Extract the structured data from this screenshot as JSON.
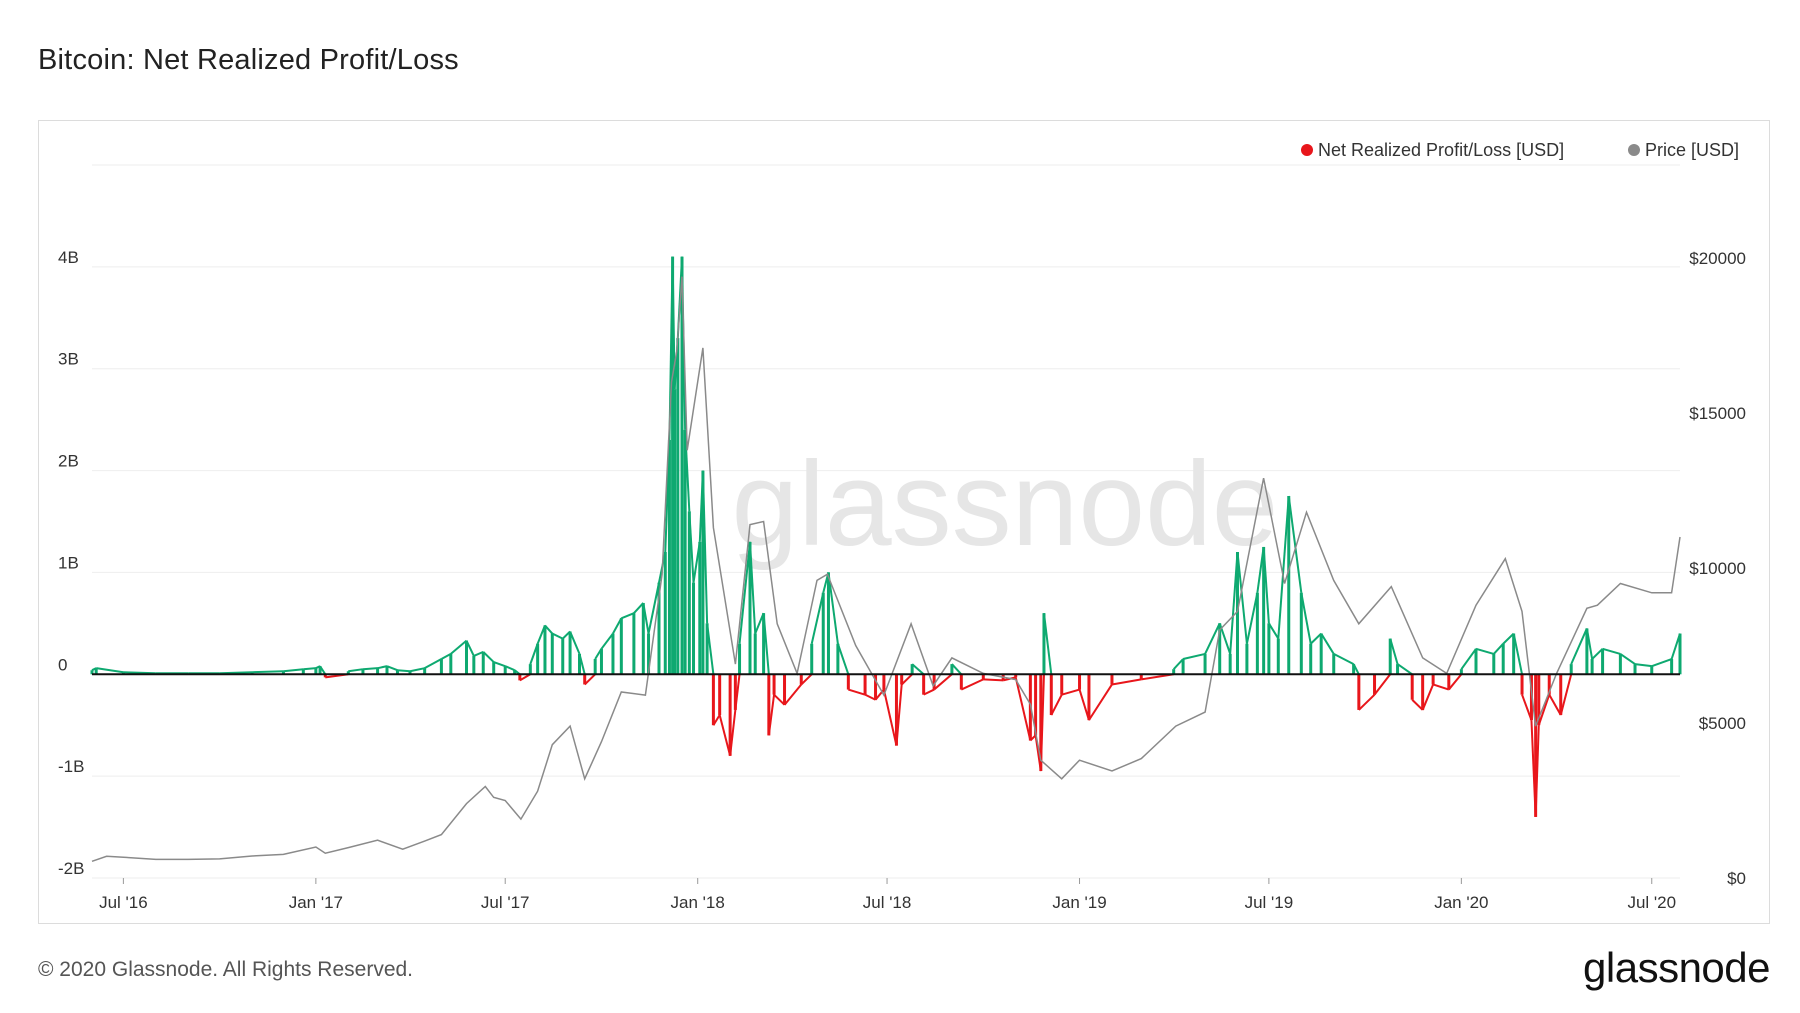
{
  "page": {
    "title": "Bitcoin: Net Realized Profit/Loss",
    "copyright": "© 2020 Glassnode. All Rights Reserved.",
    "logo": "glassnode",
    "watermark": "glassnode"
  },
  "colors": {
    "profit": "#0ea970",
    "loss": "#e8161b",
    "price": "#8a8a8a",
    "zero_line": "#111111",
    "grid": "#eeeeee"
  },
  "chart_data": {
    "type": "area",
    "title": "Bitcoin: Net Realized Profit/Loss",
    "legend_position": "top-right",
    "legend": [
      "Net Realized Profit/Loss [USD]",
      "Price [USD]"
    ],
    "grid": true,
    "x_ticks": [
      "Jul '16",
      "Jan '17",
      "Jul '17",
      "Jan '18",
      "Jul '18",
      "Jan '19",
      "Jul '19",
      "Jan '20",
      "Jul '20"
    ],
    "x_range": [
      "2016-06-01",
      "2020-07-28"
    ],
    "y_left": {
      "ticks": [
        "4B",
        "3B",
        "2B",
        "1B",
        "0",
        "-1B",
        "-2B"
      ],
      "tick_values": [
        4000000000,
        3000000000,
        2000000000,
        1000000000,
        0,
        -1000000000,
        -2000000000
      ],
      "range": [
        -2000000000,
        5000000000
      ]
    },
    "y_right": {
      "ticks": [
        "$20000",
        "$15000",
        "$10000",
        "$5000",
        "$0"
      ],
      "tick_values": [
        20000,
        15000,
        10000,
        5000,
        0
      ],
      "range": [
        0,
        23000
      ]
    },
    "series": [
      {
        "name": "Net Realized Profit/Loss [USD]",
        "axis": "left",
        "unit": "USD",
        "points": [
          [
            "2016-06-01",
            40000000
          ],
          [
            "2016-06-05",
            60000000
          ],
          [
            "2016-07-01",
            20000000
          ],
          [
            "2016-08-01",
            10000000
          ],
          [
            "2016-09-01",
            10000000
          ],
          [
            "2016-10-01",
            10000000
          ],
          [
            "2016-11-01",
            20000000
          ],
          [
            "2016-12-01",
            30000000
          ],
          [
            "2016-12-20",
            50000000
          ],
          [
            "2017-01-01",
            60000000
          ],
          [
            "2017-01-05",
            80000000
          ],
          [
            "2017-01-10",
            -30000000
          ],
          [
            "2017-02-01",
            30000000
          ],
          [
            "2017-02-15",
            50000000
          ],
          [
            "2017-03-01",
            60000000
          ],
          [
            "2017-03-10",
            80000000
          ],
          [
            "2017-03-20",
            40000000
          ],
          [
            "2017-04-01",
            30000000
          ],
          [
            "2017-04-15",
            60000000
          ],
          [
            "2017-05-01",
            150000000
          ],
          [
            "2017-05-10",
            200000000
          ],
          [
            "2017-05-25",
            330000000
          ],
          [
            "2017-06-01",
            180000000
          ],
          [
            "2017-06-10",
            220000000
          ],
          [
            "2017-06-20",
            120000000
          ],
          [
            "2017-07-01",
            80000000
          ],
          [
            "2017-07-10",
            40000000
          ],
          [
            "2017-07-15",
            -60000000
          ],
          [
            "2017-07-25",
            100000000
          ],
          [
            "2017-08-01",
            300000000
          ],
          [
            "2017-08-08",
            480000000
          ],
          [
            "2017-08-15",
            400000000
          ],
          [
            "2017-08-25",
            350000000
          ],
          [
            "2017-09-01",
            420000000
          ],
          [
            "2017-09-10",
            200000000
          ],
          [
            "2017-09-15",
            -100000000
          ],
          [
            "2017-09-25",
            150000000
          ],
          [
            "2017-10-01",
            250000000
          ],
          [
            "2017-10-12",
            400000000
          ],
          [
            "2017-10-20",
            550000000
          ],
          [
            "2017-11-01",
            600000000
          ],
          [
            "2017-11-10",
            700000000
          ],
          [
            "2017-11-15",
            400000000
          ],
          [
            "2017-11-25",
            900000000
          ],
          [
            "2017-12-01",
            1200000000
          ],
          [
            "2017-12-05",
            2300000000
          ],
          [
            "2017-12-08",
            4100000000
          ],
          [
            "2017-12-10",
            2800000000
          ],
          [
            "2017-12-13",
            3300000000
          ],
          [
            "2017-12-17",
            4100000000
          ],
          [
            "2017-12-20",
            2400000000
          ],
          [
            "2017-12-24",
            1600000000
          ],
          [
            "2017-12-28",
            900000000
          ],
          [
            "2018-01-03",
            1300000000
          ],
          [
            "2018-01-06",
            2000000000
          ],
          [
            "2018-01-10",
            500000000
          ],
          [
            "2018-01-16",
            -500000000
          ],
          [
            "2018-01-22",
            -400000000
          ],
          [
            "2018-02-01",
            -800000000
          ],
          [
            "2018-02-06",
            -350000000
          ],
          [
            "2018-02-10",
            300000000
          ],
          [
            "2018-02-20",
            1300000000
          ],
          [
            "2018-02-25",
            400000000
          ],
          [
            "2018-03-05",
            600000000
          ],
          [
            "2018-03-10",
            -600000000
          ],
          [
            "2018-03-15",
            -200000000
          ],
          [
            "2018-03-25",
            -300000000
          ],
          [
            "2018-04-10",
            -100000000
          ],
          [
            "2018-04-20",
            300000000
          ],
          [
            "2018-05-01",
            800000000
          ],
          [
            "2018-05-06",
            1000000000
          ],
          [
            "2018-05-15",
            300000000
          ],
          [
            "2018-05-25",
            -150000000
          ],
          [
            "2018-06-10",
            -200000000
          ],
          [
            "2018-06-20",
            -250000000
          ],
          [
            "2018-06-28",
            -150000000
          ],
          [
            "2018-07-10",
            -700000000
          ],
          [
            "2018-07-15",
            -100000000
          ],
          [
            "2018-07-25",
            100000000
          ],
          [
            "2018-08-05",
            -200000000
          ],
          [
            "2018-08-15",
            -150000000
          ],
          [
            "2018-09-01",
            100000000
          ],
          [
            "2018-09-10",
            -150000000
          ],
          [
            "2018-10-01",
            -50000000
          ],
          [
            "2018-10-20",
            -60000000
          ],
          [
            "2018-11-01",
            -30000000
          ],
          [
            "2018-11-15",
            -650000000
          ],
          [
            "2018-11-20",
            -600000000
          ],
          [
            "2018-11-25",
            -950000000
          ],
          [
            "2018-11-28",
            600000000
          ],
          [
            "2018-12-05",
            -400000000
          ],
          [
            "2018-12-15",
            -200000000
          ],
          [
            "2019-01-01",
            -150000000
          ],
          [
            "2019-01-10",
            -450000000
          ],
          [
            "2019-02-01",
            -100000000
          ],
          [
            "2019-03-01",
            -50000000
          ],
          [
            "2019-04-01",
            50000000
          ],
          [
            "2019-04-10",
            150000000
          ],
          [
            "2019-05-01",
            200000000
          ],
          [
            "2019-05-15",
            500000000
          ],
          [
            "2019-05-25",
            200000000
          ],
          [
            "2019-06-01",
            1200000000
          ],
          [
            "2019-06-10",
            300000000
          ],
          [
            "2019-06-20",
            800000000
          ],
          [
            "2019-06-26",
            1250000000
          ],
          [
            "2019-07-01",
            500000000
          ],
          [
            "2019-07-10",
            350000000
          ],
          [
            "2019-07-20",
            1750000000
          ],
          [
            "2019-08-01",
            800000000
          ],
          [
            "2019-08-10",
            300000000
          ],
          [
            "2019-08-20",
            400000000
          ],
          [
            "2019-09-01",
            200000000
          ],
          [
            "2019-09-20",
            100000000
          ],
          [
            "2019-09-25",
            -350000000
          ],
          [
            "2019-10-10",
            -200000000
          ],
          [
            "2019-10-25",
            350000000
          ],
          [
            "2019-11-01",
            100000000
          ],
          [
            "2019-11-15",
            -250000000
          ],
          [
            "2019-11-25",
            -350000000
          ],
          [
            "2019-12-05",
            -100000000
          ],
          [
            "2019-12-20",
            -150000000
          ],
          [
            "2020-01-01",
            50000000
          ],
          [
            "2020-01-15",
            250000000
          ],
          [
            "2020-02-01",
            200000000
          ],
          [
            "2020-02-10",
            300000000
          ],
          [
            "2020-02-20",
            400000000
          ],
          [
            "2020-02-28",
            -200000000
          ],
          [
            "2020-03-08",
            -450000000
          ],
          [
            "2020-03-12",
            -1400000000
          ],
          [
            "2020-03-15",
            -500000000
          ],
          [
            "2020-03-25",
            -200000000
          ],
          [
            "2020-04-05",
            -400000000
          ],
          [
            "2020-04-15",
            100000000
          ],
          [
            "2020-04-30",
            450000000
          ],
          [
            "2020-05-05",
            150000000
          ],
          [
            "2020-05-15",
            250000000
          ],
          [
            "2020-06-01",
            200000000
          ],
          [
            "2020-06-15",
            100000000
          ],
          [
            "2020-07-01",
            80000000
          ],
          [
            "2020-07-20",
            150000000
          ],
          [
            "2020-07-28",
            400000000
          ]
        ]
      },
      {
        "name": "Price [USD]",
        "axis": "right",
        "unit": "USD",
        "points": [
          [
            "2016-06-01",
            540
          ],
          [
            "2016-06-15",
            700
          ],
          [
            "2016-07-01",
            670
          ],
          [
            "2016-08-01",
            600
          ],
          [
            "2016-09-01",
            600
          ],
          [
            "2016-10-01",
            615
          ],
          [
            "2016-11-01",
            710
          ],
          [
            "2016-12-01",
            760
          ],
          [
            "2017-01-01",
            1000
          ],
          [
            "2017-01-10",
            800
          ],
          [
            "2017-02-01",
            980
          ],
          [
            "2017-03-01",
            1220
          ],
          [
            "2017-03-25",
            930
          ],
          [
            "2017-04-15",
            1190
          ],
          [
            "2017-05-01",
            1400
          ],
          [
            "2017-05-25",
            2400
          ],
          [
            "2017-06-12",
            2950
          ],
          [
            "2017-06-20",
            2600
          ],
          [
            "2017-07-01",
            2500
          ],
          [
            "2017-07-16",
            1900
          ],
          [
            "2017-08-01",
            2800
          ],
          [
            "2017-08-15",
            4300
          ],
          [
            "2017-09-01",
            4900
          ],
          [
            "2017-09-15",
            3200
          ],
          [
            "2017-10-01",
            4400
          ],
          [
            "2017-10-20",
            6000
          ],
          [
            "2017-11-12",
            5900
          ],
          [
            "2017-11-28",
            9800
          ],
          [
            "2017-12-07",
            16000
          ],
          [
            "2017-12-12",
            17000
          ],
          [
            "2017-12-17",
            19400
          ],
          [
            "2017-12-22",
            13800
          ],
          [
            "2018-01-06",
            17100
          ],
          [
            "2018-01-16",
            11300
          ],
          [
            "2018-02-06",
            6900
          ],
          [
            "2018-02-20",
            11400
          ],
          [
            "2018-03-05",
            11500
          ],
          [
            "2018-03-18",
            8200
          ],
          [
            "2018-04-06",
            6600
          ],
          [
            "2018-04-25",
            9600
          ],
          [
            "2018-05-05",
            9800
          ],
          [
            "2018-06-01",
            7500
          ],
          [
            "2018-06-28",
            5900
          ],
          [
            "2018-07-24",
            8200
          ],
          [
            "2018-08-14",
            6200
          ],
          [
            "2018-09-01",
            7100
          ],
          [
            "2018-10-01",
            6600
          ],
          [
            "2018-11-01",
            6400
          ],
          [
            "2018-11-15",
            5600
          ],
          [
            "2018-11-25",
            3800
          ],
          [
            "2018-12-15",
            3200
          ],
          [
            "2019-01-01",
            3800
          ],
          [
            "2019-02-01",
            3450
          ],
          [
            "2019-03-01",
            3850
          ],
          [
            "2019-04-03",
            4900
          ],
          [
            "2019-05-01",
            5350
          ],
          [
            "2019-05-15",
            8000
          ],
          [
            "2019-06-01",
            8600
          ],
          [
            "2019-06-26",
            12900
          ],
          [
            "2019-07-16",
            9500
          ],
          [
            "2019-08-06",
            11800
          ],
          [
            "2019-09-01",
            9600
          ],
          [
            "2019-09-25",
            8200
          ],
          [
            "2019-10-26",
            9400
          ],
          [
            "2019-11-25",
            7100
          ],
          [
            "2019-12-18",
            6600
          ],
          [
            "2020-01-15",
            8800
          ],
          [
            "2020-02-12",
            10300
          ],
          [
            "2020-02-28",
            8600
          ],
          [
            "2020-03-12",
            4900
          ],
          [
            "2020-04-01",
            6600
          ],
          [
            "2020-04-30",
            8700
          ],
          [
            "2020-05-10",
            8800
          ],
          [
            "2020-06-01",
            9500
          ],
          [
            "2020-07-01",
            9200
          ],
          [
            "2020-07-20",
            9200
          ],
          [
            "2020-07-28",
            11000
          ]
        ]
      }
    ]
  }
}
